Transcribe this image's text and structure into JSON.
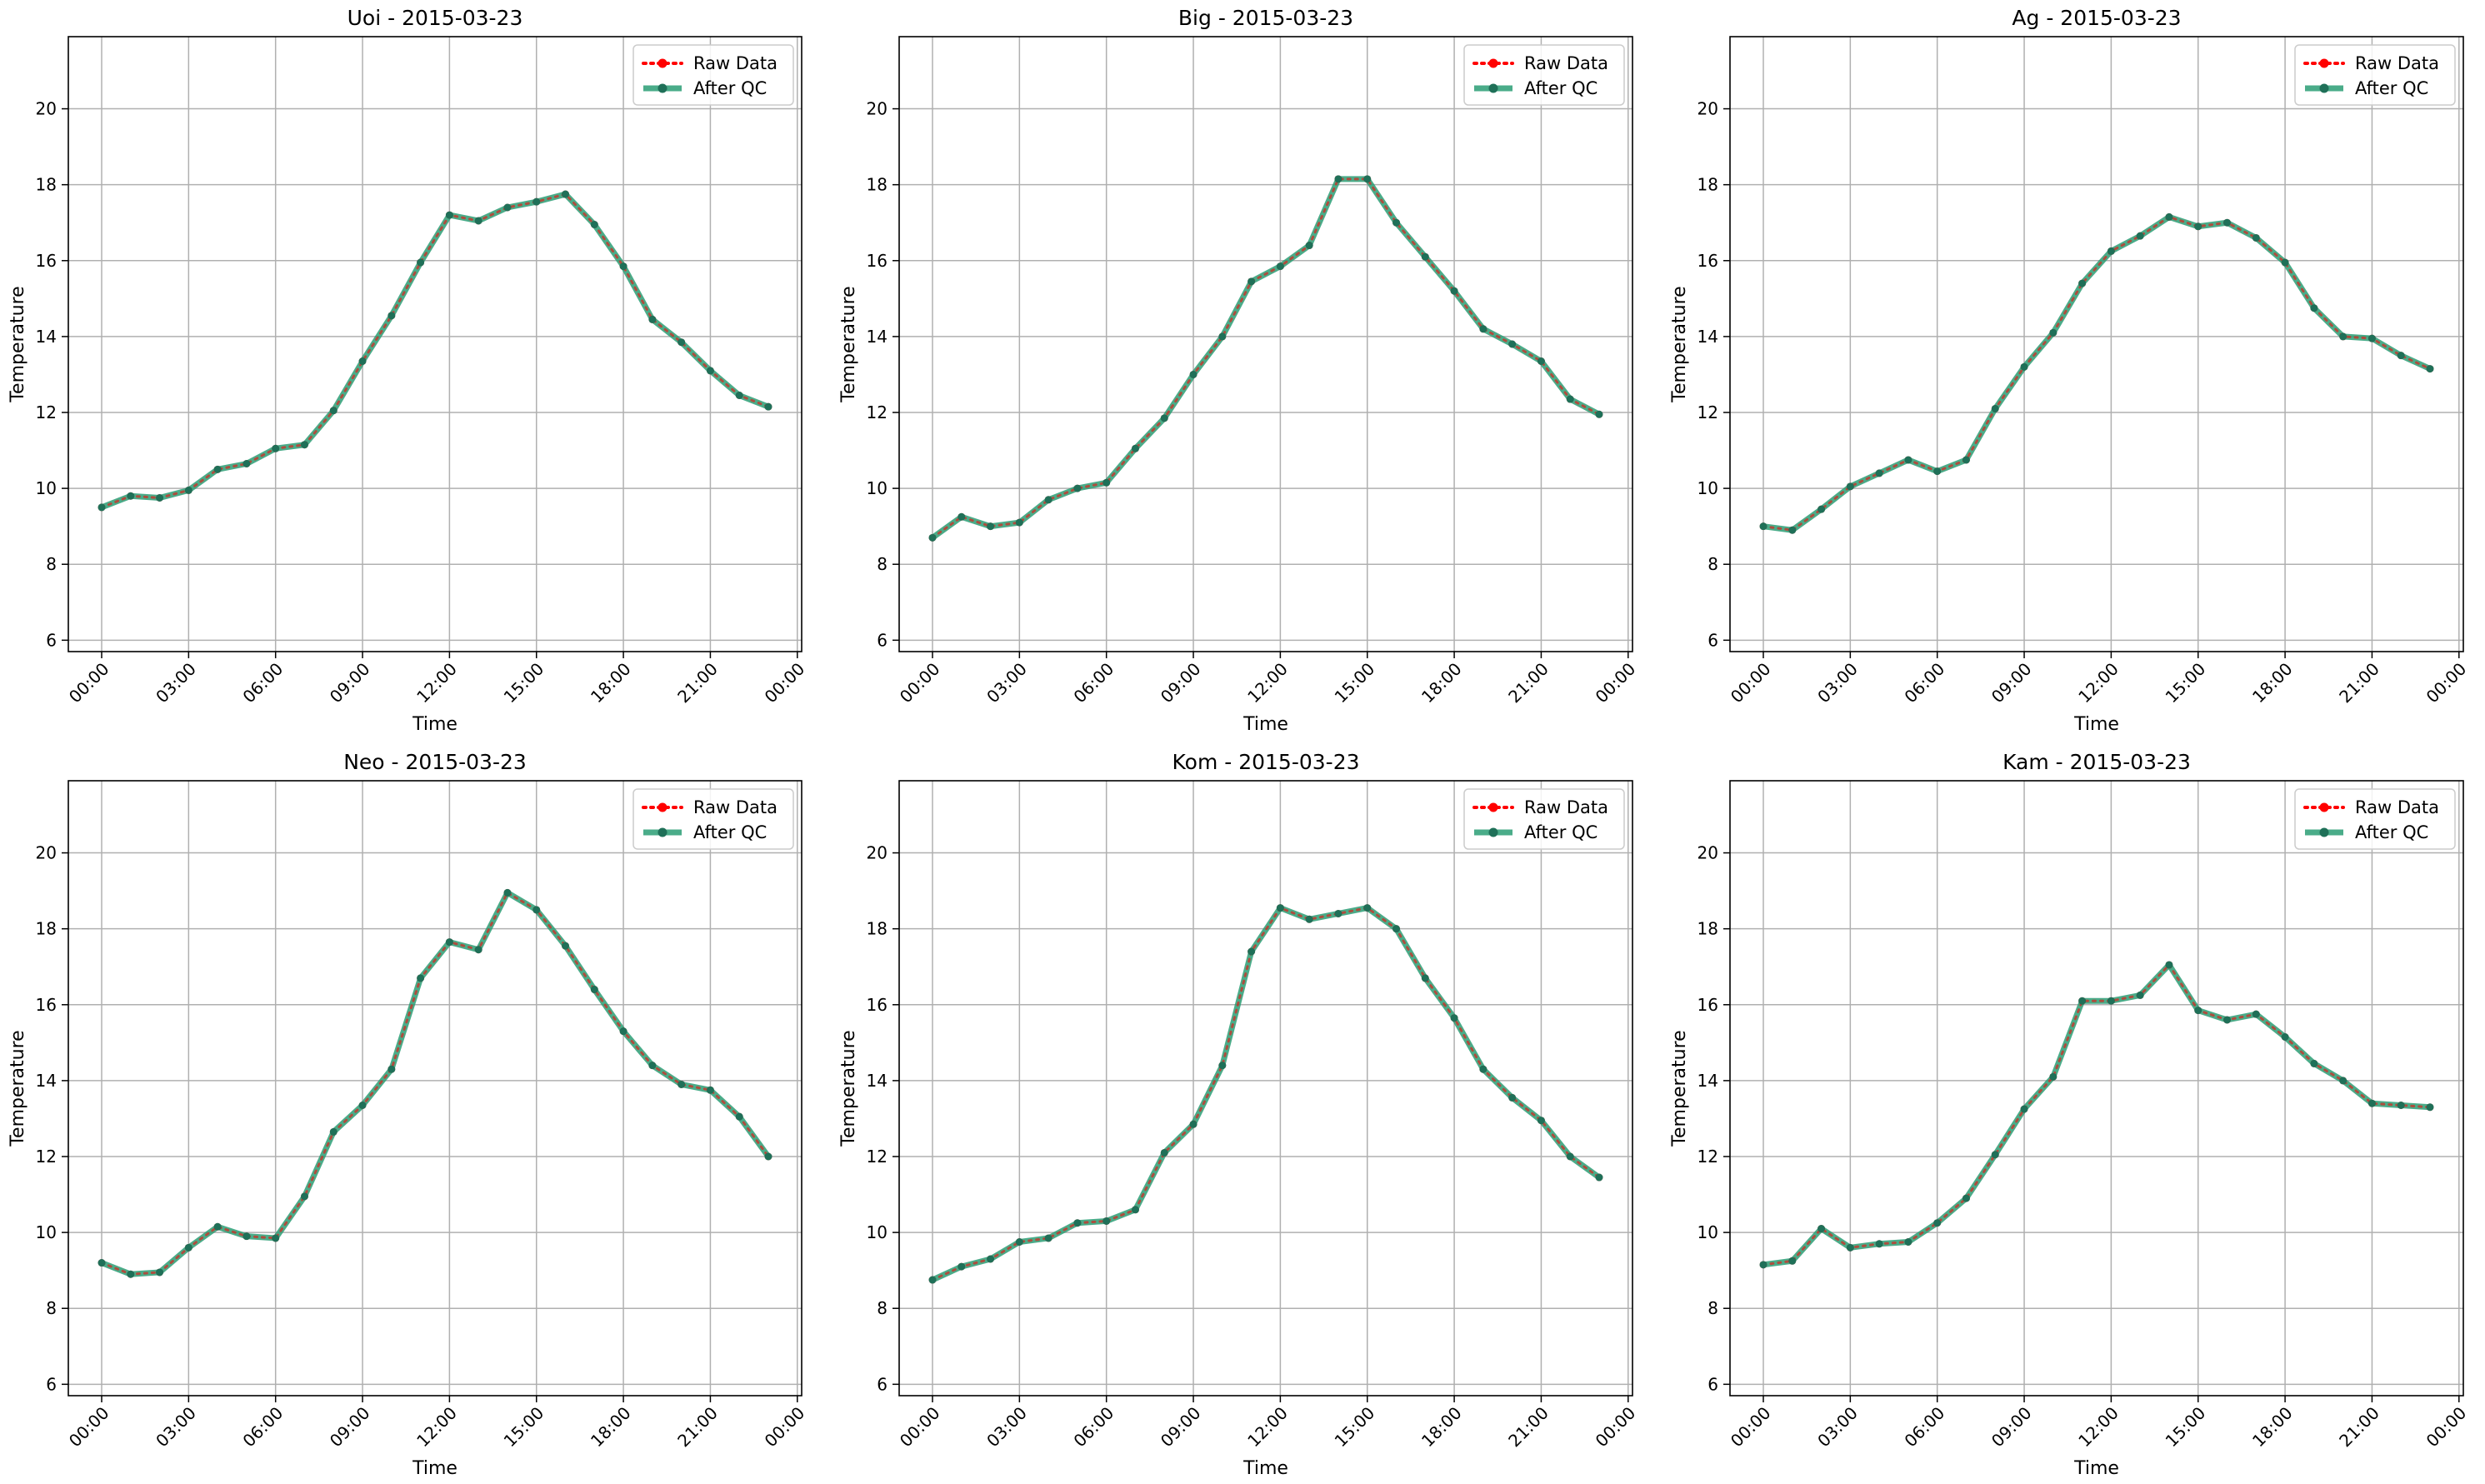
{
  "figure": {
    "charts_count": 6
  },
  "chart_data": [
    {
      "type": "line",
      "title": "Uoi - 2015-03-23",
      "xlabel": "Time",
      "ylabel": "Temperature",
      "xlim": [
        -1.15,
        24.15
      ],
      "ylim": [
        5.7,
        21.9
      ],
      "x_ticks": [
        0,
        3,
        6,
        9,
        12,
        15,
        18,
        21,
        24
      ],
      "x_tick_labels": [
        "00:00",
        "03:00",
        "06:00",
        "09:00",
        "12:00",
        "15:00",
        "18:00",
        "21:00",
        "00:00"
      ],
      "y_ticks": [
        6,
        8,
        10,
        12,
        14,
        16,
        18,
        20
      ],
      "y_tick_labels": [
        "6",
        "8",
        "10",
        "12",
        "14",
        "16",
        "18",
        "20"
      ],
      "grid": true,
      "legend_position": "top-right",
      "legend": [
        "Raw Data",
        "After QC"
      ],
      "x": [
        0,
        1,
        2,
        3,
        4,
        5,
        6,
        7,
        8,
        9,
        10,
        11,
        12,
        13,
        14,
        15,
        16,
        17,
        18,
        19,
        20,
        21,
        22,
        23
      ],
      "series": [
        {
          "name": "Raw Data",
          "values": [
            9.5,
            9.8,
            9.75,
            9.95,
            10.5,
            10.65,
            11.05,
            11.15,
            12.05,
            13.35,
            14.55,
            15.95,
            17.2,
            17.05,
            17.4,
            17.55,
            17.75,
            16.95,
            15.85,
            14.45,
            13.85,
            13.1,
            12.45,
            12.15
          ]
        },
        {
          "name": "After QC",
          "values": [
            9.5,
            9.8,
            9.75,
            9.95,
            10.5,
            10.65,
            11.05,
            11.15,
            12.05,
            13.35,
            14.55,
            15.95,
            17.2,
            17.05,
            17.4,
            17.55,
            17.75,
            16.95,
            15.85,
            14.45,
            13.85,
            13.1,
            12.45,
            12.15
          ]
        }
      ]
    },
    {
      "type": "line",
      "title": "Big - 2015-03-23",
      "xlabel": "Time",
      "ylabel": "Temperature",
      "xlim": [
        -1.15,
        24.15
      ],
      "ylim": [
        5.7,
        21.9
      ],
      "x_ticks": [
        0,
        3,
        6,
        9,
        12,
        15,
        18,
        21,
        24
      ],
      "x_tick_labels": [
        "00:00",
        "03:00",
        "06:00",
        "09:00",
        "12:00",
        "15:00",
        "18:00",
        "21:00",
        "00:00"
      ],
      "y_ticks": [
        6,
        8,
        10,
        12,
        14,
        16,
        18,
        20
      ],
      "y_tick_labels": [
        "6",
        "8",
        "10",
        "12",
        "14",
        "16",
        "18",
        "20"
      ],
      "grid": true,
      "legend_position": "top-right",
      "legend": [
        "Raw Data",
        "After QC"
      ],
      "x": [
        0,
        1,
        2,
        3,
        4,
        5,
        6,
        7,
        8,
        9,
        10,
        11,
        12,
        13,
        14,
        15,
        16,
        17,
        18,
        19,
        20,
        21,
        22,
        23
      ],
      "series": [
        {
          "name": "Raw Data",
          "values": [
            8.7,
            9.25,
            9.0,
            9.1,
            9.7,
            10.0,
            10.15,
            11.05,
            11.85,
            13.0,
            14.0,
            15.45,
            15.85,
            16.4,
            18.15,
            18.15,
            17.0,
            16.1,
            15.2,
            14.2,
            13.8,
            13.35,
            12.35,
            11.95
          ]
        },
        {
          "name": "After QC",
          "values": [
            8.7,
            9.25,
            9.0,
            9.1,
            9.7,
            10.0,
            10.15,
            11.05,
            11.85,
            13.0,
            14.0,
            15.45,
            15.85,
            16.4,
            18.15,
            18.15,
            17.0,
            16.1,
            15.2,
            14.2,
            13.8,
            13.35,
            12.35,
            11.95
          ]
        }
      ]
    },
    {
      "type": "line",
      "title": "Ag - 2015-03-23",
      "xlabel": "Time",
      "ylabel": "Temperature",
      "xlim": [
        -1.15,
        24.15
      ],
      "ylim": [
        5.7,
        21.9
      ],
      "x_ticks": [
        0,
        3,
        6,
        9,
        12,
        15,
        18,
        21,
        24
      ],
      "x_tick_labels": [
        "00:00",
        "03:00",
        "06:00",
        "09:00",
        "12:00",
        "15:00",
        "18:00",
        "21:00",
        "00:00"
      ],
      "y_ticks": [
        6,
        8,
        10,
        12,
        14,
        16,
        18,
        20
      ],
      "y_tick_labels": [
        "6",
        "8",
        "10",
        "12",
        "14",
        "16",
        "18",
        "20"
      ],
      "grid": true,
      "legend_position": "top-right",
      "legend": [
        "Raw Data",
        "After QC"
      ],
      "x": [
        0,
        1,
        2,
        3,
        4,
        5,
        6,
        7,
        8,
        9,
        10,
        11,
        12,
        13,
        14,
        15,
        16,
        17,
        18,
        19,
        20,
        21,
        22,
        23
      ],
      "series": [
        {
          "name": "Raw Data",
          "values": [
            9.0,
            8.9,
            9.45,
            10.05,
            10.4,
            10.75,
            10.45,
            10.75,
            12.1,
            13.2,
            14.1,
            15.4,
            16.25,
            16.65,
            17.15,
            16.9,
            17.0,
            16.6,
            15.95,
            14.75,
            14.0,
            13.95,
            13.5,
            13.15
          ]
        },
        {
          "name": "After QC",
          "values": [
            9.0,
            8.9,
            9.45,
            10.05,
            10.4,
            10.75,
            10.45,
            10.75,
            12.1,
            13.2,
            14.1,
            15.4,
            16.25,
            16.65,
            17.15,
            16.9,
            17.0,
            16.6,
            15.95,
            14.75,
            14.0,
            13.95,
            13.5,
            13.15
          ]
        }
      ]
    },
    {
      "type": "line",
      "title": "Neo - 2015-03-23",
      "xlabel": "Time",
      "ylabel": "Temperature",
      "xlim": [
        -1.15,
        24.15
      ],
      "ylim": [
        5.7,
        21.9
      ],
      "x_ticks": [
        0,
        3,
        6,
        9,
        12,
        15,
        18,
        21,
        24
      ],
      "x_tick_labels": [
        "00:00",
        "03:00",
        "06:00",
        "09:00",
        "12:00",
        "15:00",
        "18:00",
        "21:00",
        "00:00"
      ],
      "y_ticks": [
        6,
        8,
        10,
        12,
        14,
        16,
        18,
        20
      ],
      "y_tick_labels": [
        "6",
        "8",
        "10",
        "12",
        "14",
        "16",
        "18",
        "20"
      ],
      "grid": true,
      "legend_position": "top-right",
      "legend": [
        "Raw Data",
        "After QC"
      ],
      "x": [
        0,
        1,
        2,
        3,
        4,
        5,
        6,
        7,
        8,
        9,
        10,
        11,
        12,
        13,
        14,
        15,
        16,
        17,
        18,
        19,
        20,
        21,
        22,
        23
      ],
      "series": [
        {
          "name": "Raw Data",
          "values": [
            9.2,
            8.9,
            8.95,
            9.6,
            10.15,
            9.9,
            9.85,
            10.95,
            12.65,
            13.35,
            14.3,
            16.7,
            17.65,
            17.45,
            18.95,
            18.5,
            17.55,
            16.4,
            15.3,
            14.4,
            13.9,
            13.75,
            13.05,
            12.0
          ]
        },
        {
          "name": "After QC",
          "values": [
            9.2,
            8.9,
            8.95,
            9.6,
            10.15,
            9.9,
            9.85,
            10.95,
            12.65,
            13.35,
            14.3,
            16.7,
            17.65,
            17.45,
            18.95,
            18.5,
            17.55,
            16.4,
            15.3,
            14.4,
            13.9,
            13.75,
            13.05,
            12.0
          ]
        }
      ]
    },
    {
      "type": "line",
      "title": "Kom - 2015-03-23",
      "xlabel": "Time",
      "ylabel": "Temperature",
      "xlim": [
        -1.15,
        24.15
      ],
      "ylim": [
        5.7,
        21.9
      ],
      "x_ticks": [
        0,
        3,
        6,
        9,
        12,
        15,
        18,
        21,
        24
      ],
      "x_tick_labels": [
        "00:00",
        "03:00",
        "06:00",
        "09:00",
        "12:00",
        "15:00",
        "18:00",
        "21:00",
        "00:00"
      ],
      "y_ticks": [
        6,
        8,
        10,
        12,
        14,
        16,
        18,
        20
      ],
      "y_tick_labels": [
        "6",
        "8",
        "10",
        "12",
        "14",
        "16",
        "18",
        "20"
      ],
      "grid": true,
      "legend_position": "top-right",
      "legend": [
        "Raw Data",
        "After QC"
      ],
      "x": [
        0,
        1,
        2,
        3,
        4,
        5,
        6,
        7,
        8,
        9,
        10,
        11,
        12,
        13,
        14,
        15,
        16,
        17,
        18,
        19,
        20,
        21,
        22,
        23
      ],
      "series": [
        {
          "name": "Raw Data",
          "values": [
            8.75,
            9.1,
            9.3,
            9.75,
            9.85,
            10.25,
            10.3,
            10.6,
            12.1,
            12.85,
            14.4,
            17.4,
            18.55,
            18.25,
            18.4,
            18.55,
            18.0,
            16.7,
            15.65,
            14.3,
            13.55,
            12.95,
            12.0,
            11.45
          ]
        },
        {
          "name": "After QC",
          "values": [
            8.75,
            9.1,
            9.3,
            9.75,
            9.85,
            10.25,
            10.3,
            10.6,
            12.1,
            12.85,
            14.4,
            17.4,
            18.55,
            18.25,
            18.4,
            18.55,
            18.0,
            16.7,
            15.65,
            14.3,
            13.55,
            12.95,
            12.0,
            11.45
          ]
        }
      ]
    },
    {
      "type": "line",
      "title": "Kam - 2015-03-23",
      "xlabel": "Time",
      "ylabel": "Temperature",
      "xlim": [
        -1.15,
        24.15
      ],
      "ylim": [
        5.7,
        21.9
      ],
      "x_ticks": [
        0,
        3,
        6,
        9,
        12,
        15,
        18,
        21,
        24
      ],
      "x_tick_labels": [
        "00:00",
        "03:00",
        "06:00",
        "09:00",
        "12:00",
        "15:00",
        "18:00",
        "21:00",
        "00:00"
      ],
      "y_ticks": [
        6,
        8,
        10,
        12,
        14,
        16,
        18,
        20
      ],
      "y_tick_labels": [
        "6",
        "8",
        "10",
        "12",
        "14",
        "16",
        "18",
        "20"
      ],
      "grid": true,
      "legend_position": "top-right",
      "legend": [
        "Raw Data",
        "After QC"
      ],
      "x": [
        0,
        1,
        2,
        3,
        4,
        5,
        6,
        7,
        8,
        9,
        10,
        11,
        12,
        13,
        14,
        15,
        16,
        17,
        18,
        19,
        20,
        21,
        22,
        23
      ],
      "series": [
        {
          "name": "Raw Data",
          "values": [
            9.15,
            9.25,
            10.1,
            9.6,
            9.7,
            9.75,
            10.25,
            10.9,
            12.05,
            13.25,
            14.1,
            16.1,
            16.1,
            16.25,
            17.05,
            15.85,
            15.6,
            15.75,
            15.15,
            14.45,
            14.0,
            13.4,
            13.35,
            13.3
          ]
        },
        {
          "name": "After QC",
          "values": [
            9.15,
            9.25,
            10.1,
            9.6,
            9.7,
            9.75,
            10.25,
            10.9,
            12.05,
            13.25,
            14.1,
            16.1,
            16.1,
            16.25,
            17.05,
            15.85,
            15.6,
            15.75,
            15.15,
            14.45,
            14.0,
            13.4,
            13.35,
            13.3
          ]
        }
      ]
    }
  ],
  "colors": {
    "raw": "#ff0000",
    "qc": "#2a9d74",
    "qc_marker": "#1f7058",
    "grid": "#b0b0b0",
    "axis": "#000000"
  }
}
